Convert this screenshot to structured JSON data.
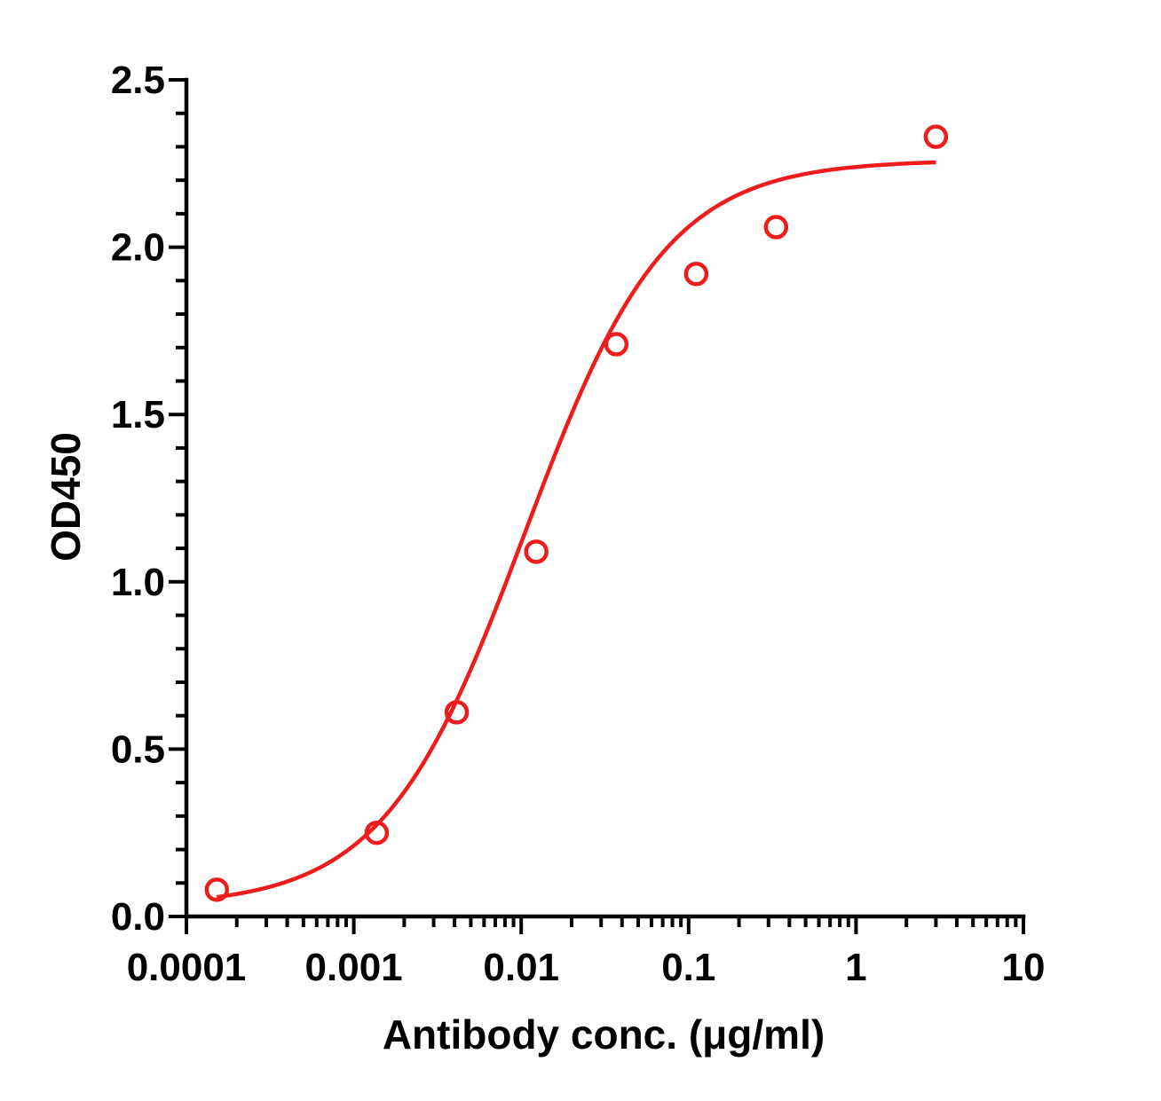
{
  "chart_data": {
    "type": "scatter",
    "title": "",
    "xlabel": "Antibody conc. (μg/ml)",
    "ylabel": "OD450",
    "x_scale": "log",
    "xlim": [
      0.0001,
      10
    ],
    "ylim": [
      0,
      2.5
    ],
    "x_ticks": [
      {
        "value": 0.0001,
        "label": "0.0001"
      },
      {
        "value": 0.001,
        "label": "0.001"
      },
      {
        "value": 0.01,
        "label": "0.01"
      },
      {
        "value": 0.1,
        "label": "0.1"
      },
      {
        "value": 1,
        "label": "1"
      },
      {
        "value": 10,
        "label": "10"
      }
    ],
    "y_ticks": [
      {
        "value": 0,
        "label": "0.0"
      },
      {
        "value": 0.5,
        "label": "0.5"
      },
      {
        "value": 1.0,
        "label": "1.0"
      },
      {
        "value": 1.5,
        "label": "1.5"
      },
      {
        "value": 2.0,
        "label": "2.0"
      },
      {
        "value": 2.5,
        "label": "2.5"
      }
    ],
    "grid": false,
    "legend": "none",
    "series": [
      {
        "color": "#ee1c1c",
        "marker": "open-circle",
        "points": [
          {
            "x": 0.000152,
            "y": 0.08
          },
          {
            "x": 0.00137,
            "y": 0.25
          },
          {
            "x": 0.00412,
            "y": 0.61
          },
          {
            "x": 0.0123,
            "y": 1.09
          },
          {
            "x": 0.037,
            "y": 1.71
          },
          {
            "x": 0.111,
            "y": 1.92
          },
          {
            "x": 0.333,
            "y": 2.06
          },
          {
            "x": 3.0,
            "y": 2.33
          }
        ],
        "fit": {
          "model": "four-parameter logistic",
          "bottom": 0.03,
          "top": 2.26,
          "ec50": 0.0105,
          "hill": 1.03,
          "x_range": [
            0.000152,
            3.0
          ]
        }
      }
    ]
  }
}
